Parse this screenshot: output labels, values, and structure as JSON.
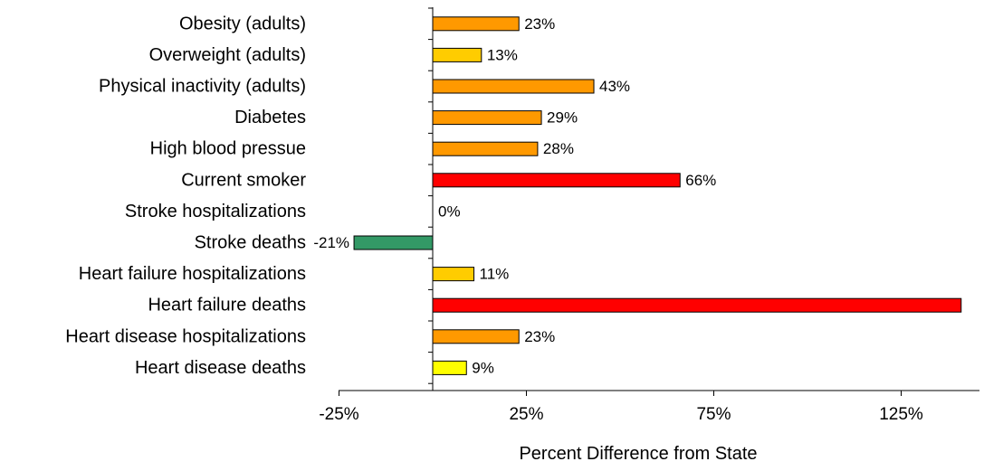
{
  "chart_data": {
    "type": "bar",
    "orientation": "horizontal",
    "xlabel": "Percent Difference from State",
    "ylabel": "",
    "title": "",
    "xlim": [
      -25,
      140
    ],
    "x_ticks": [
      -25,
      25,
      75,
      125
    ],
    "x_tick_labels": [
      "-25%",
      "25%",
      "75%",
      "125%"
    ],
    "grid": false,
    "categories": [
      "Obesity (adults)",
      "Overweight (adults)",
      "Physical inactivity (adults)",
      "Diabetes",
      "High blood pressue",
      "Current smoker",
      "Stroke hospitalizations",
      "Stroke deaths",
      "Heart failure hospitalizations",
      "Heart failure deaths",
      "Heart disease hospitalizations",
      "Heart disease deaths"
    ],
    "values": [
      23,
      13,
      43,
      29,
      28,
      66,
      0,
      -21,
      11,
      141,
      23,
      9
    ],
    "value_labels": [
      "23%",
      "13%",
      "43%",
      "29%",
      "28%",
      "66%",
      "0%",
      "-21%",
      "11%",
      "",
      "23%",
      "9%"
    ],
    "colors": [
      "#FF9900",
      "#FFCC00",
      "#FF9900",
      "#FF9900",
      "#FF9900",
      "#FF0000",
      "#FFFFFF",
      "#339966",
      "#FFCC00",
      "#FF0000",
      "#FF9900",
      "#FFFF00"
    ]
  }
}
